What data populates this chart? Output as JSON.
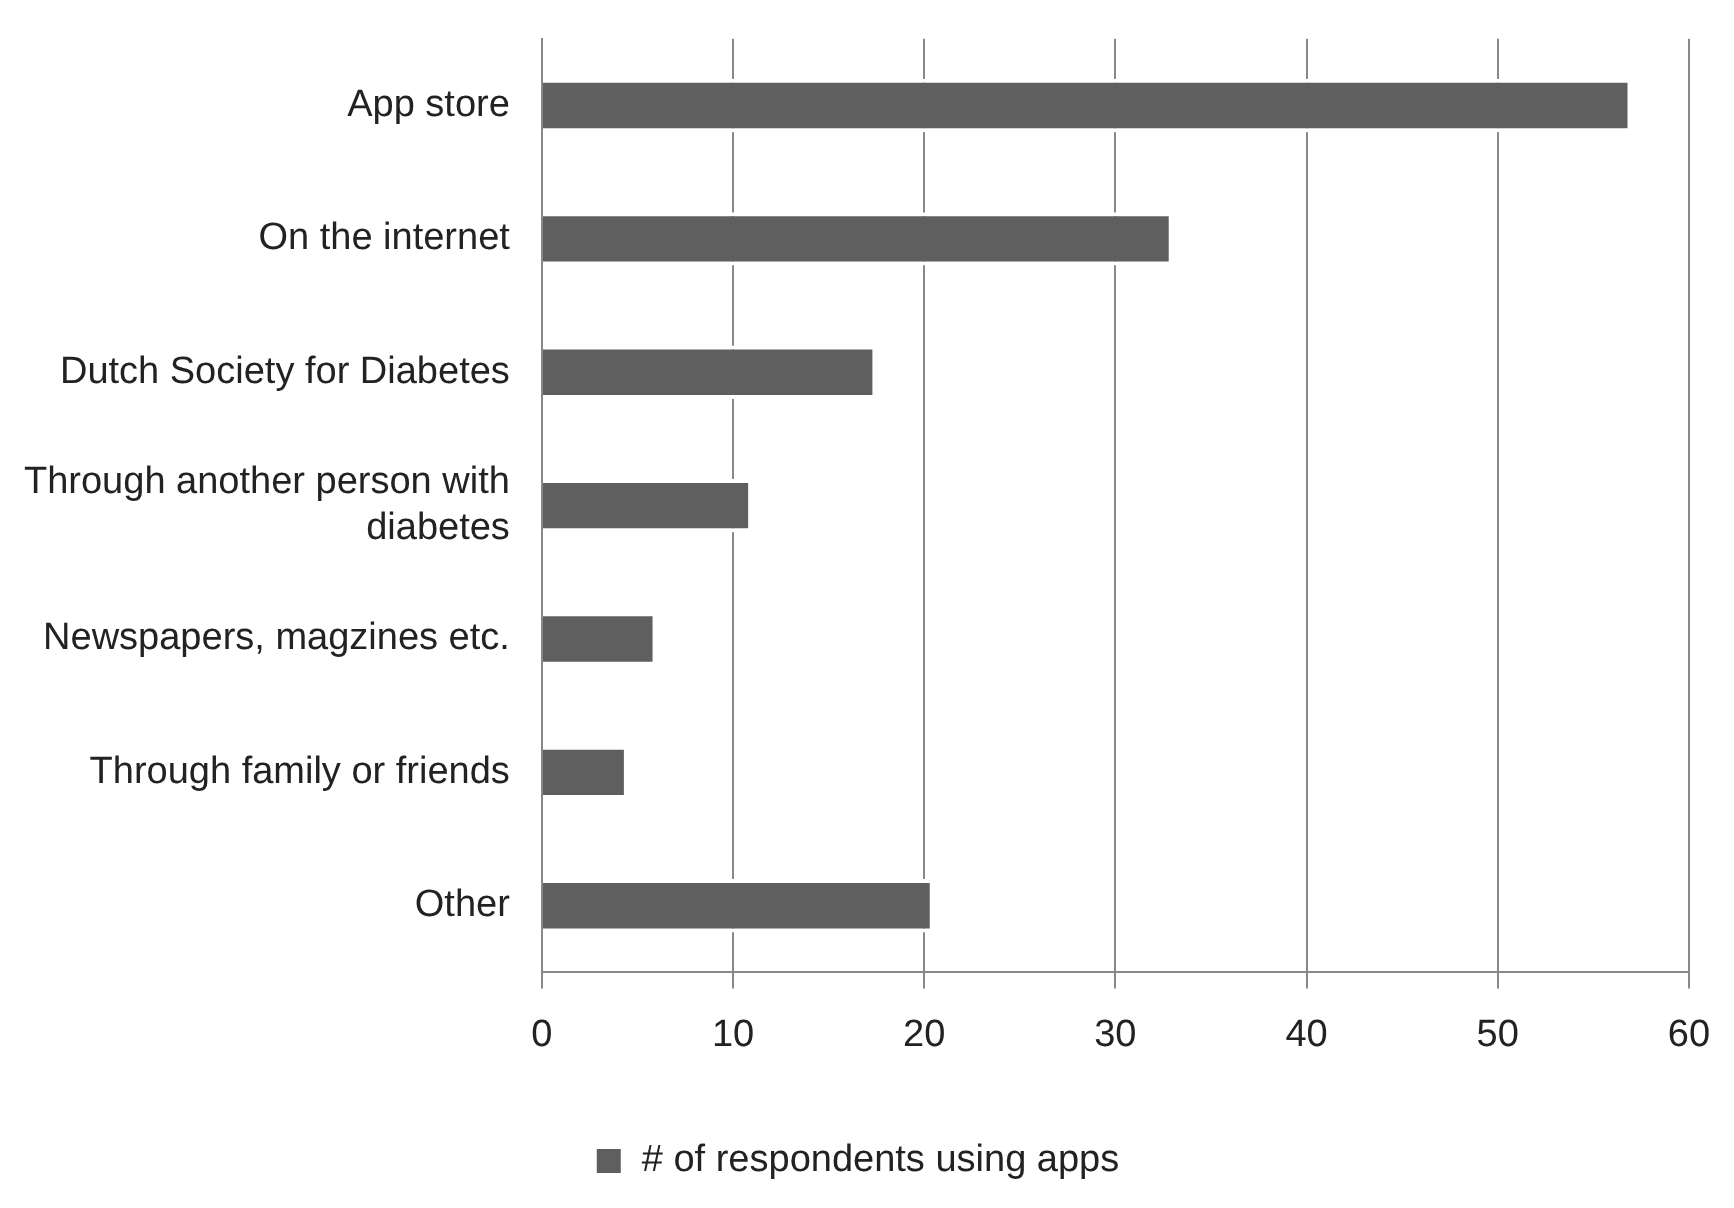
{
  "chart_data": {
    "type": "bar",
    "orientation": "horizontal",
    "categories": [
      "App store",
      "On the internet",
      "Dutch Society for Diabetes",
      "Through another person with diabetes",
      "Newspapers, magzines etc.",
      "Through family or friends",
      "Other"
    ],
    "series": [
      {
        "name": "# of respondents using apps",
        "color": "#5f5f5f",
        "values": [
          57,
          33,
          17.5,
          11,
          6,
          4.5,
          20.5
        ]
      }
    ],
    "xlim": [
      0,
      60
    ],
    "xticks": [
      0,
      10,
      20,
      30,
      40,
      50,
      60
    ],
    "grid": "x",
    "legend": "bottom"
  }
}
